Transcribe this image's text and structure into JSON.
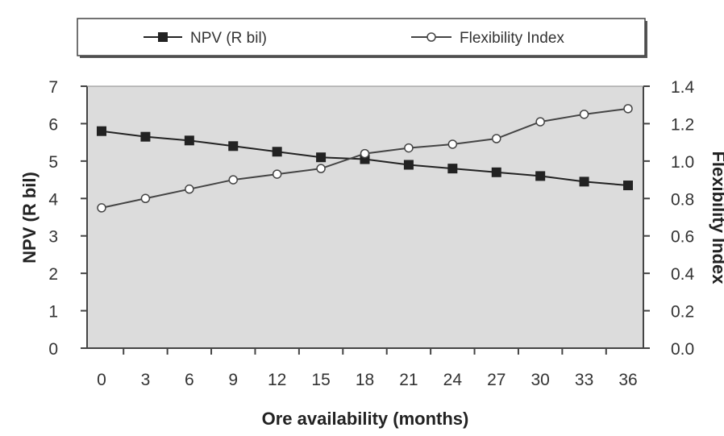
{
  "chart_data": {
    "type": "line",
    "xlabel": "Ore availability (months)",
    "ylabel": "NPV (R bil)",
    "y2label": "Flexibility Index",
    "x": [
      0,
      3,
      6,
      9,
      12,
      15,
      18,
      21,
      24,
      27,
      30,
      33,
      36
    ],
    "x_tick_labels": [
      "0",
      "3",
      "6",
      "9",
      "12",
      "15",
      "18",
      "21",
      "24",
      "27",
      "30",
      "33",
      "36"
    ],
    "ylim": [
      0,
      7
    ],
    "y_ticks": [
      0,
      1,
      2,
      3,
      4,
      5,
      6,
      7
    ],
    "y_tick_labels": [
      "0",
      "1",
      "2",
      "3",
      "4",
      "5",
      "6",
      "7"
    ],
    "y2lim": [
      0,
      1.4
    ],
    "y2_ticks": [
      0,
      0.2,
      0.4,
      0.6,
      0.8,
      1.0,
      1.2,
      1.4
    ],
    "y2_tick_labels": [
      "0.0",
      "0.2",
      "0.4",
      "0.6",
      "0.8",
      "1.0",
      "1.2",
      "1.4"
    ],
    "grid": false,
    "legend_position": "top",
    "series": [
      {
        "name": "NPV (R bil)",
        "axis": "left",
        "marker": "filled-square",
        "color": "#222222",
        "values": [
          5.8,
          5.65,
          5.55,
          5.4,
          5.25,
          5.1,
          5.05,
          4.9,
          4.8,
          4.7,
          4.6,
          4.45,
          4.35
        ]
      },
      {
        "name": "Flexibility Index",
        "axis": "right",
        "marker": "open-circle",
        "color": "#444444",
        "values": [
          0.75,
          0.8,
          0.85,
          0.9,
          0.93,
          0.96,
          1.04,
          1.07,
          1.09,
          1.12,
          1.21,
          1.25,
          1.28
        ]
      }
    ]
  },
  "colors": {
    "plot_background": "#dcdcdc",
    "axis": "#444444"
  }
}
